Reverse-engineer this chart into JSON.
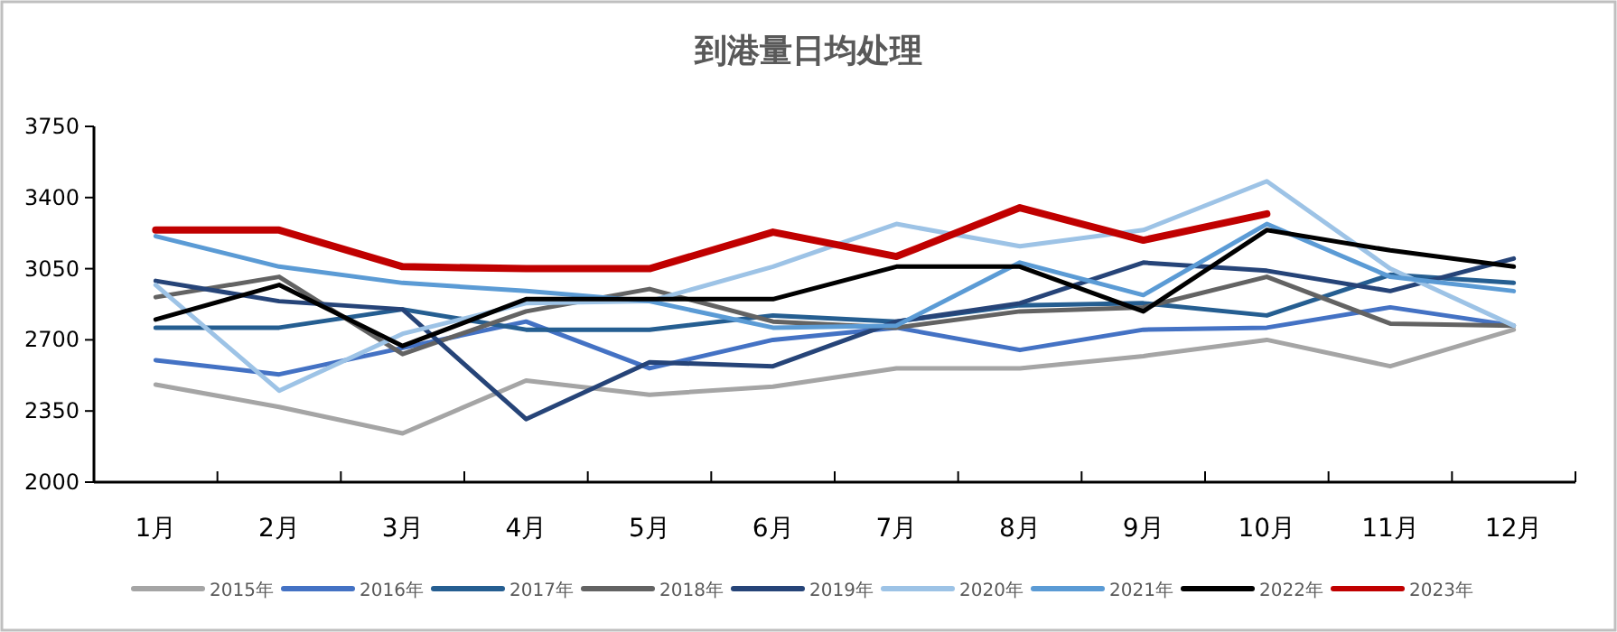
{
  "chart_data": {
    "type": "line",
    "title": "到港量日均处理",
    "categories": [
      "1月",
      "2月",
      "3月",
      "4月",
      "5月",
      "6月",
      "7月",
      "8月",
      "9月",
      "10月",
      "11月",
      "12月"
    ],
    "ylim": [
      2000,
      3750
    ],
    "yticks": [
      2000,
      2350,
      2700,
      3050,
      3400,
      3750
    ],
    "legend": "bottom",
    "series": [
      {
        "name": "2015年",
        "color": "#a5a5a5",
        "values": [
          2480,
          2370,
          2240,
          2500,
          2430,
          2470,
          2560,
          2560,
          2620,
          2700,
          2570,
          2750
        ]
      },
      {
        "name": "2016年",
        "color": "#4472c4",
        "values": [
          2600,
          2530,
          2660,
          2790,
          2560,
          2700,
          2760,
          2650,
          2750,
          2760,
          2860,
          2770
        ]
      },
      {
        "name": "2017年",
        "color": "#255e91",
        "values": [
          2760,
          2760,
          2850,
          2750,
          2750,
          2820,
          2790,
          2870,
          2880,
          2820,
          3020,
          2980
        ]
      },
      {
        "name": "2018年",
        "color": "#636363",
        "values": [
          2910,
          3010,
          2630,
          2840,
          2950,
          2790,
          2760,
          2840,
          2860,
          3010,
          2780,
          2770
        ]
      },
      {
        "name": "2019年",
        "color": "#264478",
        "values": [
          2990,
          2890,
          2850,
          2310,
          2590,
          2570,
          2790,
          2880,
          3080,
          3040,
          2940,
          3100
        ]
      },
      {
        "name": "2020年",
        "color": "#9dc3e6",
        "values": [
          2970,
          2450,
          2730,
          2880,
          2890,
          3060,
          3270,
          3160,
          3240,
          3480,
          3050,
          2770
        ]
      },
      {
        "name": "2021年",
        "color": "#5b9bd5",
        "values": [
          3210,
          3060,
          2980,
          2940,
          2890,
          2760,
          2770,
          3080,
          2920,
          3270,
          3010,
          2940
        ]
      },
      {
        "name": "2022年",
        "color": "#000000",
        "values": [
          2800,
          2970,
          2670,
          2900,
          2900,
          2900,
          3060,
          3060,
          2840,
          3240,
          3140,
          3060
        ]
      },
      {
        "name": "2023年",
        "color": "#c00000",
        "values": [
          3240,
          3240,
          3060,
          3050,
          3050,
          3230,
          3110,
          3350,
          3190,
          3320,
          null,
          null
        ]
      }
    ]
  }
}
